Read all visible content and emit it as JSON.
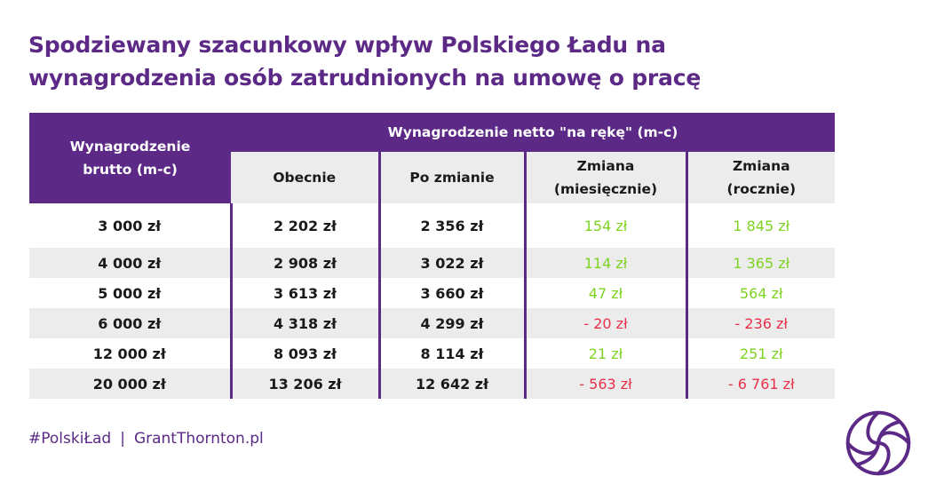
{
  "title": {
    "line1": "Spodziewany szacunkowy wpływ Polskiego Ładu na",
    "line2": "wynagrodzenia osób zatrudnionych na umowę o pracę"
  },
  "table": {
    "header_brutto_line1": "Wynagrodzenie",
    "header_brutto_line2": "brutto (m-c)",
    "header_netto": "Wynagrodzenie netto \"na rękę\" (m-c)",
    "sub_obecnie": "Obecnie",
    "sub_po_zmianie": "Po zmianie",
    "sub_zmiana_m_line1": "Zmiana",
    "sub_zmiana_m_line2": "(miesięcznie)",
    "sub_zmiana_r_line1": "Zmiana",
    "sub_zmiana_r_line2": "(rocznie)",
    "rows": [
      {
        "brutto": "3 000 zł",
        "obecnie": "2 202 zł",
        "po_zmianie": "2 356 zł",
        "zmiana_m": "154 zł",
        "zmiana_r": "1 845 zł"
      },
      {
        "brutto": "4 000 zł",
        "obecnie": "2 908 zł",
        "po_zmianie": "3 022 zł",
        "zmiana_m": "114 zł",
        "zmiana_r": "1 365 zł"
      },
      {
        "brutto": "5 000 zł",
        "obecnie": "3 613 zł",
        "po_zmianie": "3 660 zł",
        "zmiana_m": "47 zł",
        "zmiana_r": "564 zł"
      },
      {
        "brutto": "6 000 zł",
        "obecnie": "4 318 zł",
        "po_zmianie": "4 299 zł",
        "zmiana_m": "- 20 zł",
        "zmiana_r": "- 236 zł"
      },
      {
        "brutto": "12 000 zł",
        "obecnie": "8 093 zł",
        "po_zmianie": "8 114 zł",
        "zmiana_m": "21 zł",
        "zmiana_r": "251 zł"
      },
      {
        "brutto": "20 000 zł",
        "obecnie": "13 206 zł",
        "po_zmianie": "12 642 zł",
        "zmiana_m": "- 563 zł",
        "zmiana_r": "- 6 761 zł"
      }
    ]
  },
  "footer": {
    "hashtag": "#PolskiŁad",
    "separator": "|",
    "website": "GrantThornton.pl"
  },
  "colors": {
    "brand_purple": "#5c2a86",
    "positive_green": "#7ed321",
    "negative_red": "#e8304a",
    "row_grey": "#ececec"
  },
  "icons": {
    "logo": "grant-thornton-swirl-logo"
  }
}
